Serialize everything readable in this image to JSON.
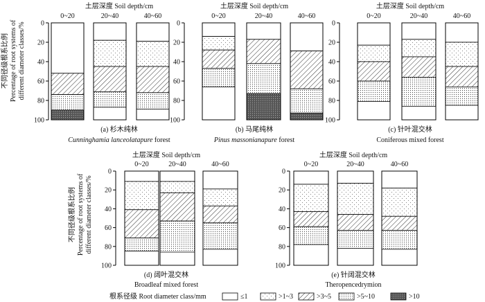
{
  "figure": {
    "ylabel_cn": "不同径级根系比例",
    "ylabel_en_1": "Percentage of root systems of",
    "ylabel_en_2": "different diameter classes/%",
    "legend_title": "根系径级 Root diameter class/mm",
    "classes": [
      "≤1",
      ">1~3",
      ">3~5",
      ">5~10",
      ">10"
    ],
    "patterns": [
      "blank",
      "sparse-dots",
      "diagonal",
      "dense-dots",
      "dark"
    ]
  },
  "chart_data": [
    {
      "type": "stacked-bar",
      "panel": "a",
      "top_title": "土层深度 Soil depth/cm",
      "caption_cn": "(a) 杉木纯林",
      "caption_en_italic": "Cunninghamia lanceolatapure",
      "caption_en_plain": " forest",
      "categories": [
        "0~20",
        "20~40",
        "40~60"
      ],
      "ylim": [
        0,
        100
      ],
      "yticks": [
        "0",
        "20",
        "40",
        "60",
        "80",
        "100"
      ],
      "y_inverted": true,
      "boundaries": [
        [
          52,
          52,
          74,
          90,
          100
        ],
        [
          18,
          45,
          71,
          87,
          87
        ],
        [
          19,
          45,
          72,
          89,
          89
        ]
      ]
    },
    {
      "type": "stacked-bar",
      "panel": "b",
      "top_title": "土层深度 Soil depth/cm",
      "caption_cn": "(b) 马尾纯林",
      "caption_en_italic": "Pinus massonianapure",
      "caption_en_plain": " forest",
      "categories": [
        "0~20",
        "20~40",
        "40~60"
      ],
      "ylim": [
        0,
        100
      ],
      "yticks": [
        "0",
        "20",
        "40",
        "60",
        "80",
        "100"
      ],
      "y_inverted": true,
      "boundaries": [
        [
          14,
          28,
          47,
          66,
          66
        ],
        [
          17,
          17,
          42,
          73,
          100
        ],
        [
          29,
          29,
          68,
          93,
          100
        ]
      ]
    },
    {
      "type": "stacked-bar",
      "panel": "c",
      "top_title": "土层深度 Soil depth/cm",
      "caption_cn": "(c) 针叶混交林",
      "caption_en_italic": "",
      "caption_en_plain": "Coniferous mixed forest",
      "categories": [
        "0~20",
        "20~40",
        "40~60"
      ],
      "ylim": [
        0,
        100
      ],
      "yticks": [
        "0",
        "20",
        "40",
        "60",
        "80",
        "100"
      ],
      "y_inverted": true,
      "boundaries": [
        [
          23,
          40,
          60,
          81,
          81
        ],
        [
          17,
          35,
          56,
          86,
          86
        ],
        [
          20,
          45,
          66,
          85,
          85
        ]
      ]
    },
    {
      "type": "stacked-bar",
      "panel": "d",
      "top_title": "土层深度 Soil depth/cm",
      "caption_cn": "(d) 阔叶混交林",
      "caption_en_italic": "",
      "caption_en_plain": "Broadleaf mixed forest",
      "categories": [
        "0~20",
        "20~40",
        "40~60"
      ],
      "ylim": [
        0,
        100
      ],
      "yticks": [
        "0",
        "20",
        "40",
        "60",
        "80",
        "100"
      ],
      "y_inverted": true,
      "boundaries": [
        [
          11,
          41,
          71,
          85,
          85
        ],
        [
          11,
          23,
          53,
          86,
          86
        ],
        [
          19,
          37,
          55,
          83,
          83
        ]
      ]
    },
    {
      "type": "stacked-bar",
      "panel": "e",
      "top_title": "土层深度 Soil depth/cm",
      "caption_cn": "(e) 针阔混交林",
      "caption_en_italic": "",
      "caption_en_plain": "Theropencedrymion",
      "categories": [
        "0~20",
        "20~40",
        "40~60"
      ],
      "ylim": [
        0,
        100
      ],
      "yticks": [
        "0",
        "20",
        "40",
        "60",
        "80",
        "100"
      ],
      "y_inverted": true,
      "boundaries": [
        [
          14,
          43,
          59,
          78,
          78
        ],
        [
          13,
          46,
          63,
          82,
          82
        ],
        [
          18,
          48,
          63,
          83,
          83
        ]
      ]
    }
  ]
}
